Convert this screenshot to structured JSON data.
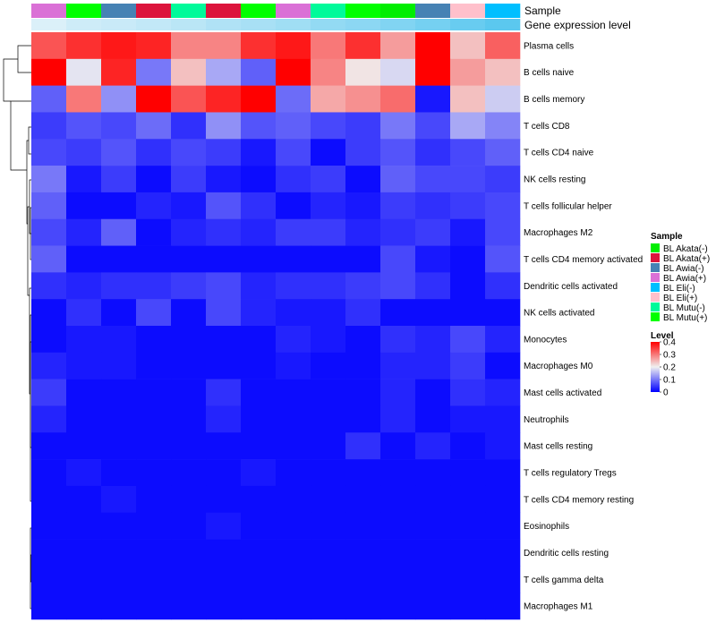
{
  "chart_data": {
    "type": "heatmap",
    "annotation_tracks": [
      {
        "label": "Sample",
        "values": [
          "BL Awia(+)",
          "BL Mutu(+)",
          "BL Awia(-)",
          "BL Akata(+)",
          "BL Mutu(-)",
          "BL Akata(+)",
          "BL Mutu(+)",
          "BL Awia(+)",
          "BL Mutu(-)",
          "BL Mutu(+)",
          "BL Akata(-)",
          "BL Awia(-)",
          "BL Eli(+)",
          "BL Eli(-)"
        ]
      },
      {
        "label": "Gene expression level",
        "values": [
          0.05,
          0.1,
          0.12,
          0.15,
          0.18,
          0.22,
          0.25,
          0.28,
          0.33,
          0.36,
          0.4,
          0.45,
          0.5,
          0.55
        ]
      }
    ],
    "rows": [
      "Plasma cells",
      "B cells naive",
      "B cells memory",
      "T cells CD8",
      "T cells CD4 naive",
      "NK cells resting",
      "T cells follicular helper",
      "Macrophages M2",
      "T cells CD4 memory activated",
      "Dendritic cells activated",
      "NK cells activated",
      "Monocytes",
      "Macrophages M0",
      "Mast cells activated",
      "Neutrophils",
      "Mast cells resting",
      "T cells regulatory  Tregs",
      "T cells CD4 memory resting",
      "Eosinophils",
      "Dendritic cells resting",
      "T cells gamma delta",
      "Macrophages M1"
    ],
    "values": [
      [
        0.33,
        0.36,
        0.38,
        0.37,
        0.29,
        0.29,
        0.36,
        0.38,
        0.3,
        0.36,
        0.27,
        0.4,
        0.24,
        0.32
      ],
      [
        0.4,
        0.19,
        0.37,
        0.1,
        0.24,
        0.14,
        0.08,
        0.4,
        0.29,
        0.21,
        0.18,
        0.4,
        0.27,
        0.24
      ],
      [
        0.08,
        0.3,
        0.12,
        0.4,
        0.33,
        0.37,
        0.4,
        0.09,
        0.26,
        0.28,
        0.31,
        0.02,
        0.24,
        0.17
      ],
      [
        0.05,
        0.07,
        0.06,
        0.09,
        0.04,
        0.12,
        0.07,
        0.08,
        0.06,
        0.05,
        0.1,
        0.06,
        0.14,
        0.11
      ],
      [
        0.06,
        0.05,
        0.07,
        0.04,
        0.06,
        0.05,
        0.02,
        0.06,
        0.01,
        0.05,
        0.07,
        0.04,
        0.06,
        0.08
      ],
      [
        0.1,
        0.02,
        0.05,
        0.01,
        0.05,
        0.02,
        0.01,
        0.04,
        0.05,
        0.01,
        0.08,
        0.06,
        0.06,
        0.05
      ],
      [
        0.08,
        0.01,
        0.01,
        0.03,
        0.02,
        0.07,
        0.04,
        0.01,
        0.03,
        0.02,
        0.05,
        0.04,
        0.05,
        0.06
      ],
      [
        0.06,
        0.03,
        0.08,
        0.01,
        0.03,
        0.04,
        0.03,
        0.05,
        0.05,
        0.03,
        0.04,
        0.05,
        0.02,
        0.06
      ],
      [
        0.08,
        0.01,
        0.01,
        0.01,
        0.01,
        0.01,
        0.01,
        0.01,
        0.01,
        0.01,
        0.06,
        0.02,
        0.01,
        0.07
      ],
      [
        0.04,
        0.03,
        0.04,
        0.04,
        0.05,
        0.06,
        0.03,
        0.04,
        0.04,
        0.05,
        0.06,
        0.04,
        0.01,
        0.04
      ],
      [
        0.01,
        0.04,
        0.01,
        0.06,
        0.01,
        0.06,
        0.03,
        0.02,
        0.02,
        0.04,
        0.01,
        0.01,
        0.01,
        0.01
      ],
      [
        0.01,
        0.02,
        0.02,
        0.01,
        0.01,
        0.01,
        0.01,
        0.03,
        0.02,
        0.01,
        0.04,
        0.03,
        0.06,
        0.03
      ],
      [
        0.03,
        0.02,
        0.02,
        0.01,
        0.01,
        0.01,
        0.01,
        0.02,
        0.01,
        0.01,
        0.03,
        0.03,
        0.05,
        0.01
      ],
      [
        0.05,
        0.01,
        0.01,
        0.01,
        0.01,
        0.04,
        0.01,
        0.01,
        0.01,
        0.01,
        0.03,
        0.01,
        0.04,
        0.03
      ],
      [
        0.03,
        0.01,
        0.01,
        0.01,
        0.01,
        0.03,
        0.01,
        0.01,
        0.01,
        0.01,
        0.03,
        0.01,
        0.02,
        0.02
      ],
      [
        0.01,
        0.01,
        0.01,
        0.01,
        0.01,
        0.01,
        0.01,
        0.01,
        0.01,
        0.04,
        0.01,
        0.03,
        0.01,
        0.02
      ],
      [
        0.01,
        0.02,
        0.01,
        0.01,
        0.01,
        0.01,
        0.02,
        0.01,
        0.01,
        0.01,
        0.01,
        0.01,
        0.01,
        0.01
      ],
      [
        0.01,
        0.01,
        0.02,
        0.01,
        0.01,
        0.01,
        0.01,
        0.01,
        0.01,
        0.01,
        0.01,
        0.01,
        0.01,
        0.01
      ],
      [
        0.01,
        0.01,
        0.01,
        0.01,
        0.01,
        0.02,
        0.01,
        0.01,
        0.01,
        0.01,
        0.01,
        0.01,
        0.01,
        0.01
      ],
      [
        0.01,
        0.01,
        0.01,
        0.01,
        0.01,
        0.01,
        0.01,
        0.01,
        0.01,
        0.01,
        0.01,
        0.01,
        0.01,
        0.01
      ],
      [
        0.01,
        0.01,
        0.01,
        0.01,
        0.01,
        0.01,
        0.01,
        0.01,
        0.01,
        0.01,
        0.01,
        0.01,
        0.01,
        0.01
      ],
      [
        0.01,
        0.01,
        0.01,
        0.01,
        0.01,
        0.01,
        0.01,
        0.01,
        0.01,
        0.01,
        0.01,
        0.01,
        0.01,
        0.01
      ]
    ],
    "color_scale": {
      "low": "#0000ff",
      "mid": "#f0f0f0",
      "high": "#ff0000",
      "min": 0,
      "mid_value": 0.2,
      "max": 0.4
    },
    "legend": {
      "sample_title": "Sample",
      "sample_items": [
        {
          "label": "BL Akata(-)",
          "color": "#00ee00"
        },
        {
          "label": "BL Akata(+)",
          "color": "#dc143c"
        },
        {
          "label": "BL Awia(-)",
          "color": "#4682b4"
        },
        {
          "label": "BL Awia(+)",
          "color": "#da70d6"
        },
        {
          "label": "BL Eli(-)",
          "color": "#00bfff"
        },
        {
          "label": "BL Eli(+)",
          "color": "#ffc0cb"
        },
        {
          "label": "BL Mutu(-)",
          "color": "#00fa9a"
        },
        {
          "label": "BL Mutu(+)",
          "color": "#00ff00"
        }
      ],
      "level_title": "Level",
      "level_ticks": [
        "0.4",
        "0.3",
        "0.2",
        "0.1",
        "0"
      ],
      "level_tick_values": [
        0.4,
        0.3,
        0.2,
        0.1,
        0
      ]
    },
    "expression_color_scale": {
      "low": "#e8f4fa",
      "high": "#5bc8ef"
    }
  }
}
